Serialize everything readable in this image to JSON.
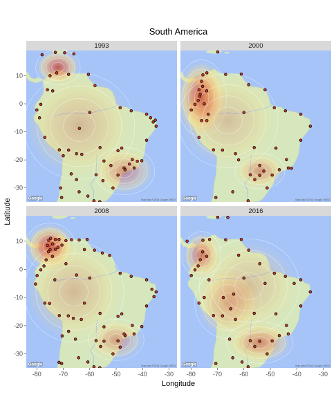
{
  "chart_data": {
    "type": "scatter",
    "title": "South America",
    "xlabel": "Longitude",
    "ylabel": "Latitude",
    "xlim": [
      -84,
      -27
    ],
    "ylim": [
      -35,
      19
    ],
    "x_ticks": [
      -80,
      -70,
      -60,
      -50,
      -40,
      -30
    ],
    "y_ticks": [
      10,
      0,
      -10,
      -20,
      -30
    ],
    "x_tick_labels": [
      "-80",
      "-70",
      "-60",
      "-50",
      "-40",
      "-30"
    ],
    "y_tick_labels": [
      "10",
      "0",
      "-10",
      "-20",
      "-30"
    ],
    "map_credit": "Map data ©2016 Google, INEGI",
    "map_logo": "Google",
    "colors": {
      "water": "#a6c4f8",
      "land": "#d7e7bd",
      "density_low": "#f4d98a",
      "density_high": "#c0392b",
      "point_fill": "#c0392b",
      "point_stroke": "#000000",
      "strip": "#d9d9d9"
    },
    "panels": [
      {
        "label": "1993",
        "hotspots": [
          {
            "lon": -72,
            "lat": 13,
            "rx": 8,
            "ry": 6,
            "strength": 0.85
          },
          {
            "lon": -47,
            "lat": -24,
            "rx": 11,
            "ry": 8,
            "strength": 0.5
          },
          {
            "lon": -64,
            "lat": -8,
            "rx": 20,
            "ry": 18,
            "strength": 0.3
          }
        ],
        "points": [
          {
            "lon": -78,
            "lat": 17.5
          },
          {
            "lon": -73,
            "lat": 18.3
          },
          {
            "lon": -69.5,
            "lat": 18.2
          },
          {
            "lon": -66,
            "lat": 17.8
          },
          {
            "lon": -75,
            "lat": 10
          },
          {
            "lon": -72.5,
            "lat": 11
          },
          {
            "lon": -68,
            "lat": 10.5
          },
          {
            "lon": -60.5,
            "lat": 10.5
          },
          {
            "lon": -58,
            "lat": 6.5
          },
          {
            "lon": -76,
            "lat": 5
          },
          {
            "lon": -74,
            "lat": 4.6
          },
          {
            "lon": -78.5,
            "lat": -0.2
          },
          {
            "lon": -80,
            "lat": -2.2
          },
          {
            "lon": -79,
            "lat": -5
          },
          {
            "lon": -77,
            "lat": -12
          },
          {
            "lon": -71.5,
            "lat": -16.4
          },
          {
            "lon": -70,
            "lat": -18.5
          },
          {
            "lon": -68,
            "lat": -16.5
          },
          {
            "lon": -65,
            "lat": -17.8
          },
          {
            "lon": -63,
            "lat": -18
          },
          {
            "lon": -67,
            "lat": -25
          },
          {
            "lon": -65,
            "lat": -27
          },
          {
            "lon": -71,
            "lat": -30
          },
          {
            "lon": -70.6,
            "lat": -33.4
          },
          {
            "lon": -64,
            "lat": -31.4
          },
          {
            "lon": -60.7,
            "lat": -32.9
          },
          {
            "lon": -58.4,
            "lat": -34.6
          },
          {
            "lon": -56.2,
            "lat": -34.9
          },
          {
            "lon": -57.6,
            "lat": -25.3
          },
          {
            "lon": -55,
            "lat": -27.4
          },
          {
            "lon": -51.2,
            "lat": -30
          },
          {
            "lon": -49.3,
            "lat": -25.4
          },
          {
            "lon": -47,
            "lat": -22.9
          },
          {
            "lon": -46.6,
            "lat": -23.5
          },
          {
            "lon": -43.2,
            "lat": -22.9
          },
          {
            "lon": -43.9,
            "lat": -19.9
          },
          {
            "lon": -47.9,
            "lat": -15.8
          },
          {
            "lon": -49.3,
            "lat": -16.7
          },
          {
            "lon": -38.5,
            "lat": -13
          },
          {
            "lon": -34.9,
            "lat": -8
          },
          {
            "lon": -38.5,
            "lat": -3.7
          },
          {
            "lon": -35.2,
            "lat": -5.8
          },
          {
            "lon": -44.3,
            "lat": -2.5
          },
          {
            "lon": -48.5,
            "lat": -1.4
          },
          {
            "lon": -60,
            "lat": -3.1
          },
          {
            "lon": -63.9,
            "lat": -8.8
          },
          {
            "lon": -56.1,
            "lat": -15.6
          },
          {
            "lon": -54.6,
            "lat": -20.4
          },
          {
            "lon": -52,
            "lat": -22
          },
          {
            "lon": -42,
            "lat": -20.5
          },
          {
            "lon": -40.3,
            "lat": -20.3
          },
          {
            "lon": -45,
            "lat": -21.5
          },
          {
            "lon": -36,
            "lat": -6.5
          },
          {
            "lon": -37,
            "lat": -5
          }
        ]
      },
      {
        "label": "2000",
        "hotspots": [
          {
            "lon": -76,
            "lat": 2,
            "rx": 9,
            "ry": 13,
            "strength": 1.0
          },
          {
            "lon": -54,
            "lat": -24,
            "rx": 9,
            "ry": 6,
            "strength": 0.5
          },
          {
            "lon": -66,
            "lat": -6,
            "rx": 18,
            "ry": 16,
            "strength": 0.25
          }
        ],
        "points": [
          {
            "lon": -75.5,
            "lat": 10.3
          },
          {
            "lon": -74,
            "lat": 11
          },
          {
            "lon": -69.9,
            "lat": 18.5
          },
          {
            "lon": -66.9,
            "lat": 10.5
          },
          {
            "lon": -61,
            "lat": 10.6
          },
          {
            "lon": -58.2,
            "lat": 6.8
          },
          {
            "lon": -74.1,
            "lat": 4.6
          },
          {
            "lon": -75.6,
            "lat": 6.2
          },
          {
            "lon": -76.5,
            "lat": 3.4
          },
          {
            "lon": -77.3,
            "lat": 1.2
          },
          {
            "lon": -78.5,
            "lat": -0.2
          },
          {
            "lon": -79.9,
            "lat": -2.2
          },
          {
            "lon": -76.7,
            "lat": 2.7
          },
          {
            "lon": -75,
            "lat": 0
          },
          {
            "lon": -77,
            "lat": 5
          },
          {
            "lon": -76,
            "lat": 8
          },
          {
            "lon": -73.5,
            "lat": -3.7
          },
          {
            "lon": -77,
            "lat": -12
          },
          {
            "lon": -76,
            "lat": -6
          },
          {
            "lon": -74,
            "lat": -6
          },
          {
            "lon": -71.5,
            "lat": -16.4
          },
          {
            "lon": -68.1,
            "lat": -16.5
          },
          {
            "lon": -63.2,
            "lat": -17.8
          },
          {
            "lon": -60,
            "lat": -3.1
          },
          {
            "lon": -48.5,
            "lat": -1.4
          },
          {
            "lon": -44.3,
            "lat": -2.5
          },
          {
            "lon": -38.5,
            "lat": -3.7
          },
          {
            "lon": -34.9,
            "lat": -8
          },
          {
            "lon": -38.5,
            "lat": -13
          },
          {
            "lon": -47.9,
            "lat": -15.8
          },
          {
            "lon": -43.9,
            "lat": -19.9
          },
          {
            "lon": -43.2,
            "lat": -22.9
          },
          {
            "lon": -46.6,
            "lat": -23.5
          },
          {
            "lon": -49.3,
            "lat": -25.4
          },
          {
            "lon": -51.2,
            "lat": -30
          },
          {
            "lon": -57.6,
            "lat": -25.3
          },
          {
            "lon": -55.9,
            "lat": -27
          },
          {
            "lon": -54,
            "lat": -25.5
          },
          {
            "lon": -58.4,
            "lat": -34.6
          },
          {
            "lon": -64.2,
            "lat": -31.4
          },
          {
            "lon": -70.6,
            "lat": -33.4
          },
          {
            "lon": -56.1,
            "lat": -15.6
          },
          {
            "lon": -54,
            "lat": -22
          },
          {
            "lon": -52.5,
            "lat": -24
          },
          {
            "lon": -42,
            "lat": -23
          },
          {
            "lon": -62,
            "lat": -20
          },
          {
            "lon": -52,
            "lat": 5
          }
        ]
      },
      {
        "label": "2008",
        "hotspots": [
          {
            "lon": -75,
            "lat": 8,
            "rx": 9,
            "ry": 8,
            "strength": 1.0
          },
          {
            "lon": -50,
            "lat": -25,
            "rx": 10,
            "ry": 7,
            "strength": 0.45
          },
          {
            "lon": -66,
            "lat": -8,
            "rx": 18,
            "ry": 17,
            "strength": 0.3
          }
        ],
        "points": [
          {
            "lon": -75.5,
            "lat": 10.3
          },
          {
            "lon": -74.8,
            "lat": 11
          },
          {
            "lon": -73,
            "lat": 10.6
          },
          {
            "lon": -71.6,
            "lat": 10.6
          },
          {
            "lon": -69,
            "lat": 10.2
          },
          {
            "lon": -66.9,
            "lat": 10.5
          },
          {
            "lon": -64,
            "lat": 10.4
          },
          {
            "lon": -61,
            "lat": 10.6
          },
          {
            "lon": -58.2,
            "lat": 6.8
          },
          {
            "lon": -74.1,
            "lat": 4.6
          },
          {
            "lon": -75.6,
            "lat": 6.2
          },
          {
            "lon": -76.5,
            "lat": 3.4
          },
          {
            "lon": -75,
            "lat": 7
          },
          {
            "lon": -73,
            "lat": 7.1
          },
          {
            "lon": -76,
            "lat": 8.5
          },
          {
            "lon": -74,
            "lat": 9
          },
          {
            "lon": -72,
            "lat": 7.8
          },
          {
            "lon": -70.5,
            "lat": 8.6
          },
          {
            "lon": -77.3,
            "lat": 1.2
          },
          {
            "lon": -78.5,
            "lat": -0.2
          },
          {
            "lon": -79.9,
            "lat": -2.2
          },
          {
            "lon": -80.5,
            "lat": -5.2
          },
          {
            "lon": -77,
            "lat": -12
          },
          {
            "lon": -75.2,
            "lat": -12.1
          },
          {
            "lon": -73.2,
            "lat": -3.7
          },
          {
            "lon": -71.5,
            "lat": -16.4
          },
          {
            "lon": -68.1,
            "lat": -16.5
          },
          {
            "lon": -66.2,
            "lat": -17.4
          },
          {
            "lon": -63.2,
            "lat": -17.8
          },
          {
            "lon": -65.4,
            "lat": -24.8
          },
          {
            "lon": -68,
            "lat": -22
          },
          {
            "lon": -70.4,
            "lat": -23.6
          },
          {
            "lon": -70.6,
            "lat": -33.4
          },
          {
            "lon": -71.6,
            "lat": -33
          },
          {
            "lon": -64.2,
            "lat": -31.4
          },
          {
            "lon": -60.7,
            "lat": -32.9
          },
          {
            "lon": -58.4,
            "lat": -34.6
          },
          {
            "lon": -56.2,
            "lat": -34.9
          },
          {
            "lon": -57.6,
            "lat": -25.3
          },
          {
            "lon": -55.9,
            "lat": -27.4
          },
          {
            "lon": -54.6,
            "lat": -25.5
          },
          {
            "lon": -51.2,
            "lat": -30
          },
          {
            "lon": -49.3,
            "lat": -25.4
          },
          {
            "lon": -48.5,
            "lat": -27.6
          },
          {
            "lon": -46.6,
            "lat": -23.5
          },
          {
            "lon": -47,
            "lat": -22.9
          },
          {
            "lon": -43.2,
            "lat": -22.9
          },
          {
            "lon": -43.9,
            "lat": -19.9
          },
          {
            "lon": -47.9,
            "lat": -15.8
          },
          {
            "lon": -49.3,
            "lat": -16.7
          },
          {
            "lon": -56.1,
            "lat": -15.6
          },
          {
            "lon": -54.6,
            "lat": -20.4
          },
          {
            "lon": -60,
            "lat": -3.1
          },
          {
            "lon": -48.5,
            "lat": -1.4
          },
          {
            "lon": -44.3,
            "lat": -2.5
          },
          {
            "lon": -38.5,
            "lat": -3.7
          },
          {
            "lon": -34.9,
            "lat": -8
          },
          {
            "lon": -38.5,
            "lat": -13
          },
          {
            "lon": -40.3,
            "lat": -20.3
          },
          {
            "lon": -35.7,
            "lat": -9.7
          },
          {
            "lon": -36.5,
            "lat": -7.1
          },
          {
            "lon": -62,
            "lat": -12
          },
          {
            "lon": -65,
            "lat": -2
          },
          {
            "lon": -69,
            "lat": 2
          },
          {
            "lon": -62,
            "lat": 7
          },
          {
            "lon": -52.5,
            "lat": 4.9
          },
          {
            "lon": -55.2,
            "lat": 5.8
          }
        ]
      },
      {
        "label": "2016",
        "hotspots": [
          {
            "lon": -76,
            "lat": 5,
            "rx": 7,
            "ry": 8,
            "strength": 0.7
          },
          {
            "lon": -54,
            "lat": -26,
            "rx": 12,
            "ry": 7,
            "strength": 0.6
          },
          {
            "lon": -66,
            "lat": -12,
            "rx": 12,
            "ry": 12,
            "strength": 0.45
          },
          {
            "lon": -58,
            "lat": -6,
            "rx": 18,
            "ry": 16,
            "strength": 0.25
          }
        ],
        "points": [
          {
            "lon": -81.5,
            "lat": 10
          },
          {
            "lon": -75.5,
            "lat": 10.3
          },
          {
            "lon": -73,
            "lat": 10.6
          },
          {
            "lon": -69.9,
            "lat": 18.5
          },
          {
            "lon": -66.1,
            "lat": 18.4
          },
          {
            "lon": -66.9,
            "lat": 10.5
          },
          {
            "lon": -61,
            "lat": 10.6
          },
          {
            "lon": -58.2,
            "lat": 6.8
          },
          {
            "lon": -74.1,
            "lat": 4.6
          },
          {
            "lon": -75.6,
            "lat": 6.2
          },
          {
            "lon": -76.5,
            "lat": 3.4
          },
          {
            "lon": -77.3,
            "lat": 1.2
          },
          {
            "lon": -78.5,
            "lat": -0.2
          },
          {
            "lon": -79.9,
            "lat": -2.2
          },
          {
            "lon": -77,
            "lat": -12
          },
          {
            "lon": -75,
            "lat": -10
          },
          {
            "lon": -73.2,
            "lat": -3.7
          },
          {
            "lon": -71.5,
            "lat": -16.4
          },
          {
            "lon": -68.1,
            "lat": -16.5
          },
          {
            "lon": -65,
            "lat": -14
          },
          {
            "lon": -63.2,
            "lat": -17.8
          },
          {
            "lon": -65.4,
            "lat": -24.8
          },
          {
            "lon": -70.6,
            "lat": -33.4
          },
          {
            "lon": -64.2,
            "lat": -31.4
          },
          {
            "lon": -60.7,
            "lat": -32.9
          },
          {
            "lon": -58.4,
            "lat": -34.6
          },
          {
            "lon": -57.6,
            "lat": -25.3
          },
          {
            "lon": -55.9,
            "lat": -27.4
          },
          {
            "lon": -54,
            "lat": -25.5
          },
          {
            "lon": -51.2,
            "lat": -30
          },
          {
            "lon": -49.3,
            "lat": -25.4
          },
          {
            "lon": -46.6,
            "lat": -23.5
          },
          {
            "lon": -43.2,
            "lat": -22.9
          },
          {
            "lon": -43.9,
            "lat": -19.9
          },
          {
            "lon": -47.9,
            "lat": -15.8
          },
          {
            "lon": -56.1,
            "lat": -15.6
          },
          {
            "lon": -60,
            "lat": -3.1
          },
          {
            "lon": -48.5,
            "lat": -1.4
          },
          {
            "lon": -44.3,
            "lat": -2.5
          },
          {
            "lon": -38.5,
            "lat": -3.7
          },
          {
            "lon": -34.9,
            "lat": -8
          },
          {
            "lon": -38.5,
            "lat": -13
          },
          {
            "lon": -63.9,
            "lat": -8.8
          },
          {
            "lon": -67.8,
            "lat": -10
          },
          {
            "lon": -62,
            "lat": 5
          },
          {
            "lon": -54,
            "lat": 2
          },
          {
            "lon": -52,
            "lat": -5
          },
          {
            "lon": -41,
            "lat": -5
          }
        ]
      }
    ]
  }
}
